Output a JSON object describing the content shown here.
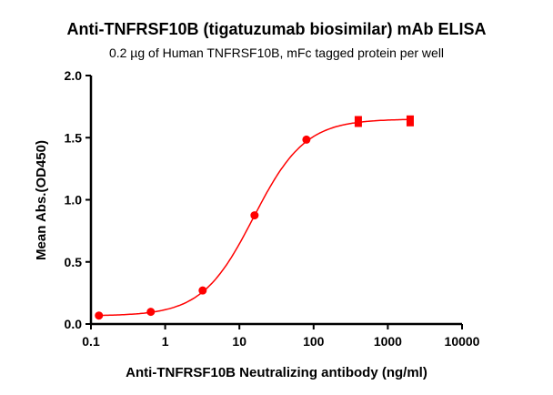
{
  "chart_data": {
    "type": "scatter",
    "title": "Anti-TNFRSF10B (tigatuzumab biosimilar) mAb ELISA",
    "subtitle": "0.2 µg of Human TNFRSF10B, mFc tagged protein per well",
    "xlabel": "Anti-TNFRSF10B Neutralizing antibody (ng/ml)",
    "ylabel": "Mean Abs.(OD450)",
    "xscale": "log",
    "xlim": [
      0.1,
      10000
    ],
    "ylim": [
      0,
      2.0
    ],
    "xticks": [
      "0.1",
      "1",
      "10",
      "100",
      "1000",
      "10000"
    ],
    "yticks": [
      "0.0",
      "0.5",
      "1.0",
      "1.5",
      "2.0"
    ],
    "grid": false,
    "color": "#ff0000",
    "fit_curve": "sigmoidal",
    "x": [
      0.128,
      0.64,
      3.2,
      16,
      80,
      400,
      2000
    ],
    "y": [
      0.068,
      0.098,
      0.27,
      0.875,
      1.484,
      1.63,
      1.635
    ]
  }
}
